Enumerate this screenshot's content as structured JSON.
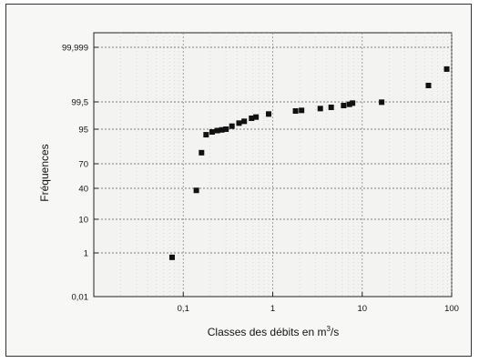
{
  "chart_data": {
    "type": "scatter",
    "title": "",
    "xlabel": "Classes des débits en m",
    "xlabel_sup": "3",
    "xlabel_end": "/s",
    "ylabel": "Fréquences",
    "x_scale": "log",
    "xlim": [
      0.01,
      100
    ],
    "x_ticks": [
      {
        "value": 0.1,
        "label": "0,1"
      },
      {
        "value": 1,
        "label": "1"
      },
      {
        "value": 10,
        "label": "10"
      },
      {
        "value": 100,
        "label": "100"
      }
    ],
    "y_scale": "probability",
    "y_ticks": [
      {
        "label": "0,01"
      },
      {
        "label": "1"
      },
      {
        "label": "10"
      },
      {
        "label": "40"
      },
      {
        "label": "70"
      },
      {
        "label": "95"
      },
      {
        "label": "99,5"
      },
      {
        "label": "99,999"
      }
    ],
    "grid": true,
    "point_color": "#111111",
    "points": [
      {
        "x": 0.075,
        "y": 0.9
      },
      {
        "x": 0.14,
        "y": 38
      },
      {
        "x": 0.16,
        "y": 78
      },
      {
        "x": 0.18,
        "y": 91
      },
      {
        "x": 0.21,
        "y": 93
      },
      {
        "x": 0.24,
        "y": 94
      },
      {
        "x": 0.27,
        "y": 94.5
      },
      {
        "x": 0.3,
        "y": 95
      },
      {
        "x": 0.35,
        "y": 95.5
      },
      {
        "x": 0.42,
        "y": 96
      },
      {
        "x": 0.48,
        "y": 96.3
      },
      {
        "x": 0.58,
        "y": 96.8
      },
      {
        "x": 0.65,
        "y": 97
      },
      {
        "x": 0.9,
        "y": 97.5
      },
      {
        "x": 1.8,
        "y": 98
      },
      {
        "x": 2.1,
        "y": 98.1
      },
      {
        "x": 3.4,
        "y": 98.4
      },
      {
        "x": 4.5,
        "y": 98.6
      },
      {
        "x": 6.2,
        "y": 98.9
      },
      {
        "x": 7.2,
        "y": 99.1
      },
      {
        "x": 7.8,
        "y": 99.3
      },
      {
        "x": 16.5,
        "y": 99.45
      },
      {
        "x": 55,
        "y": 99.65
      },
      {
        "x": 88,
        "y": 99.8
      }
    ]
  }
}
